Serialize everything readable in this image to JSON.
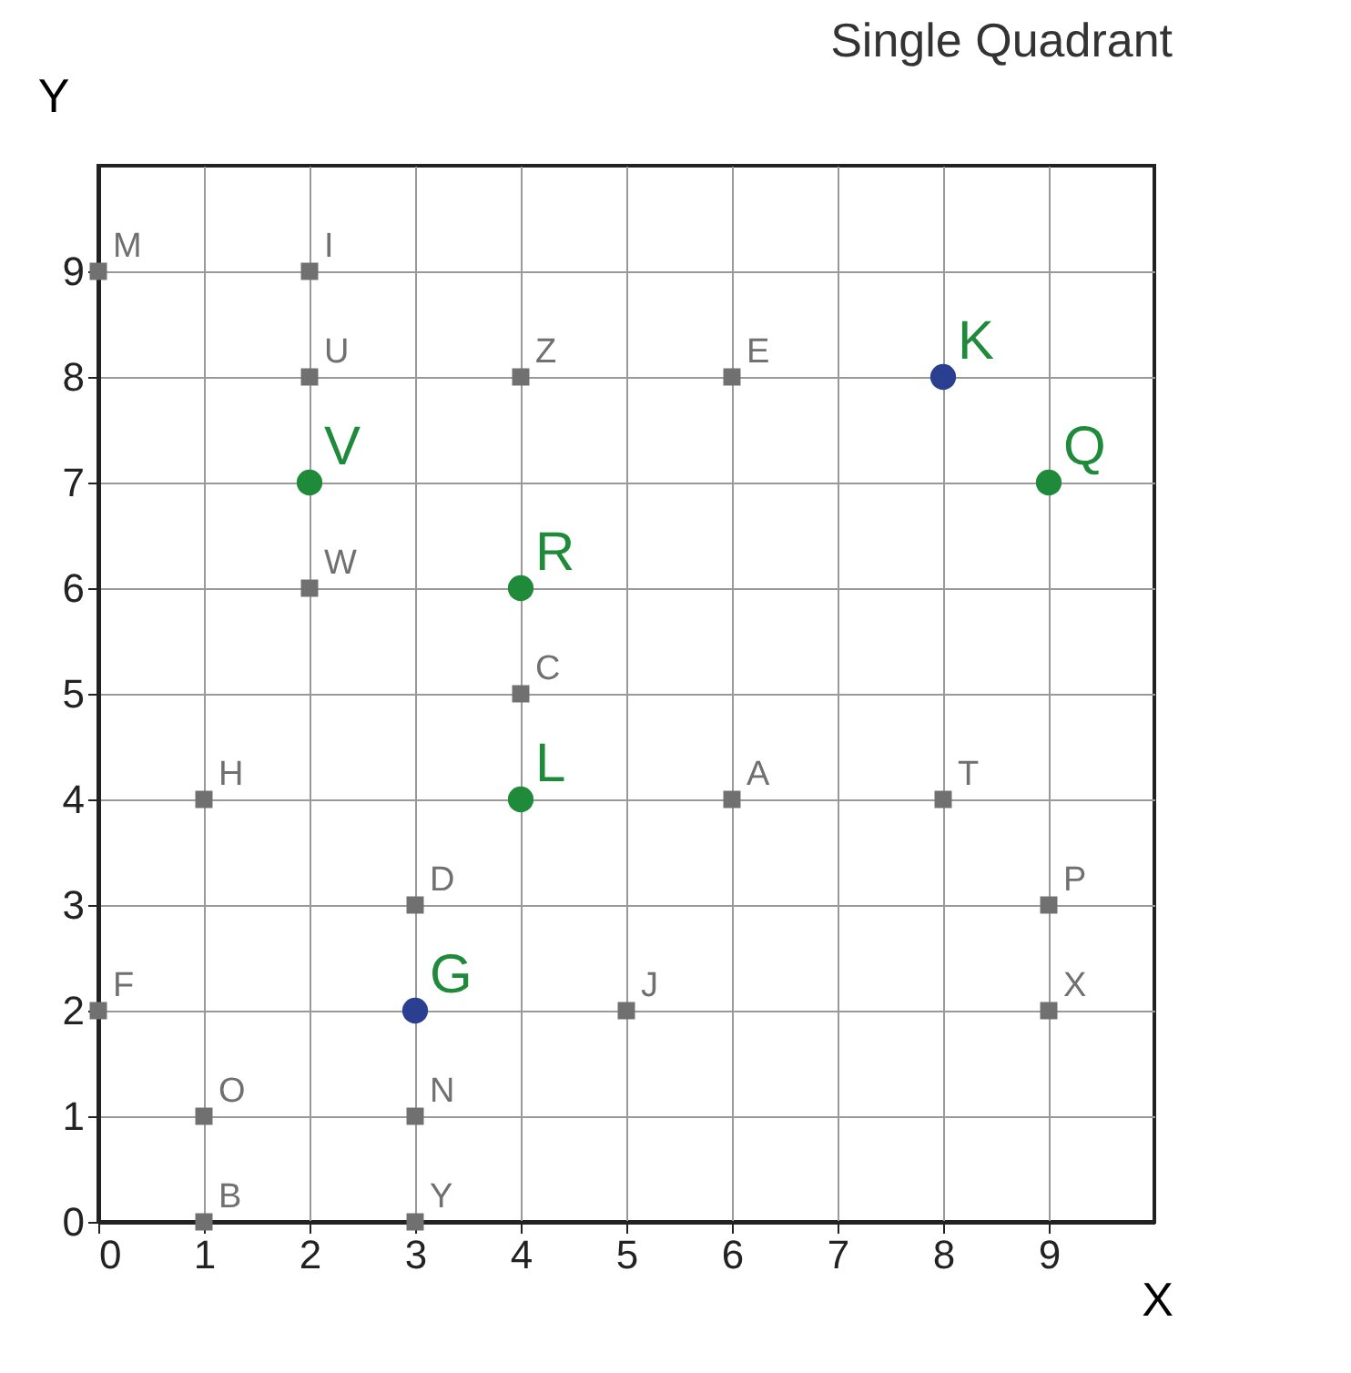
{
  "chart_data": {
    "type": "scatter",
    "title": "Single Quadrant",
    "xlabel": "X",
    "ylabel": "Y",
    "xlim": [
      0,
      10
    ],
    "ylim": [
      0,
      10
    ],
    "xticks": [
      0,
      1,
      2,
      3,
      4,
      5,
      6,
      7,
      8,
      9
    ],
    "yticks": [
      0,
      1,
      2,
      3,
      4,
      5,
      6,
      7,
      8,
      9
    ],
    "grid": true,
    "series": [
      {
        "color": "#707070",
        "marker": "square",
        "x": [
          0,
          2,
          2,
          4,
          6,
          2,
          4,
          1,
          6,
          8,
          3,
          9,
          0,
          5,
          9,
          1,
          3,
          1,
          3
        ],
        "values": [
          9,
          9,
          8,
          8,
          8,
          6,
          5,
          4,
          4,
          4,
          3,
          3,
          2,
          2,
          2,
          1,
          1,
          0,
          0
        ],
        "value_labels": [
          "M",
          "I",
          "U",
          "Z",
          "E",
          "W",
          "C",
          "H",
          "A",
          "T",
          "D",
          "P",
          "F",
          "J",
          "X",
          "O",
          "N",
          "B",
          "Y"
        ]
      },
      {
        "color": "#1f8a3a",
        "marker": "circle",
        "x": [
          2,
          4,
          4,
          9,
          8,
          3
        ],
        "values": [
          7,
          6,
          4,
          7,
          8,
          2
        ],
        "colors": [
          "#1f8a3a",
          "#1f8a3a",
          "#1f8a3a",
          "#1f8a3a",
          "#2a3f8f",
          "#2a3f8f"
        ],
        "value_labels": [
          "V",
          "R",
          "L",
          "Q",
          "K",
          "G"
        ]
      }
    ]
  }
}
